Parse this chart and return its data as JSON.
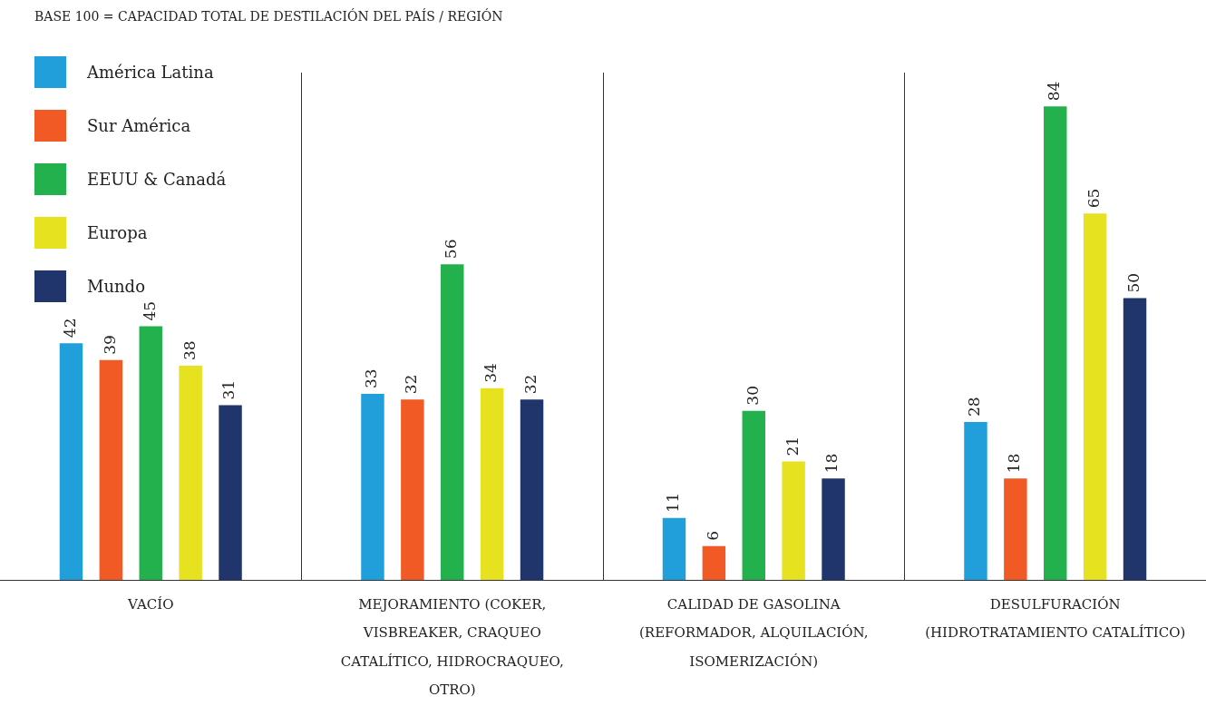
{
  "chart_data": {
    "type": "bar",
    "title": "BASE 100 =  CAPACIDAD TOTAL DE DESTILACIÓN DEL PAÍS / REGIÓN",
    "categories": [
      "VACÍO",
      "MEJORAMIENTO (COKER, VISBREAKER, CRAQUEO CATALÍTICO, HIDROCRAQUEO, OTRO)",
      "CALIDAD DE GASOLINA (REFORMADOR, ALQUILACIÓN, ISOMERIZACIÓN)",
      "DESULFURACIÓN (HIDROTRATAMIENTO CATALÍTICO)"
    ],
    "series": [
      {
        "name": "América Latina",
        "color": "#219fda",
        "values": [
          42,
          33,
          11,
          28
        ]
      },
      {
        "name": "Sur América",
        "color": "#f15a24",
        "values": [
          39,
          32,
          6,
          18
        ]
      },
      {
        "name": "EEUU & Canadá",
        "color": "#22b14c",
        "values": [
          45,
          56,
          30,
          84
        ]
      },
      {
        "name": "Europa",
        "color": "#e6e21f",
        "values": [
          38,
          34,
          21,
          65
        ]
      },
      {
        "name": "Mundo",
        "color": "#1f356b",
        "values": [
          31,
          32,
          18,
          50
        ]
      }
    ],
    "data_labels": true,
    "grid": "x",
    "legend": "top left"
  }
}
